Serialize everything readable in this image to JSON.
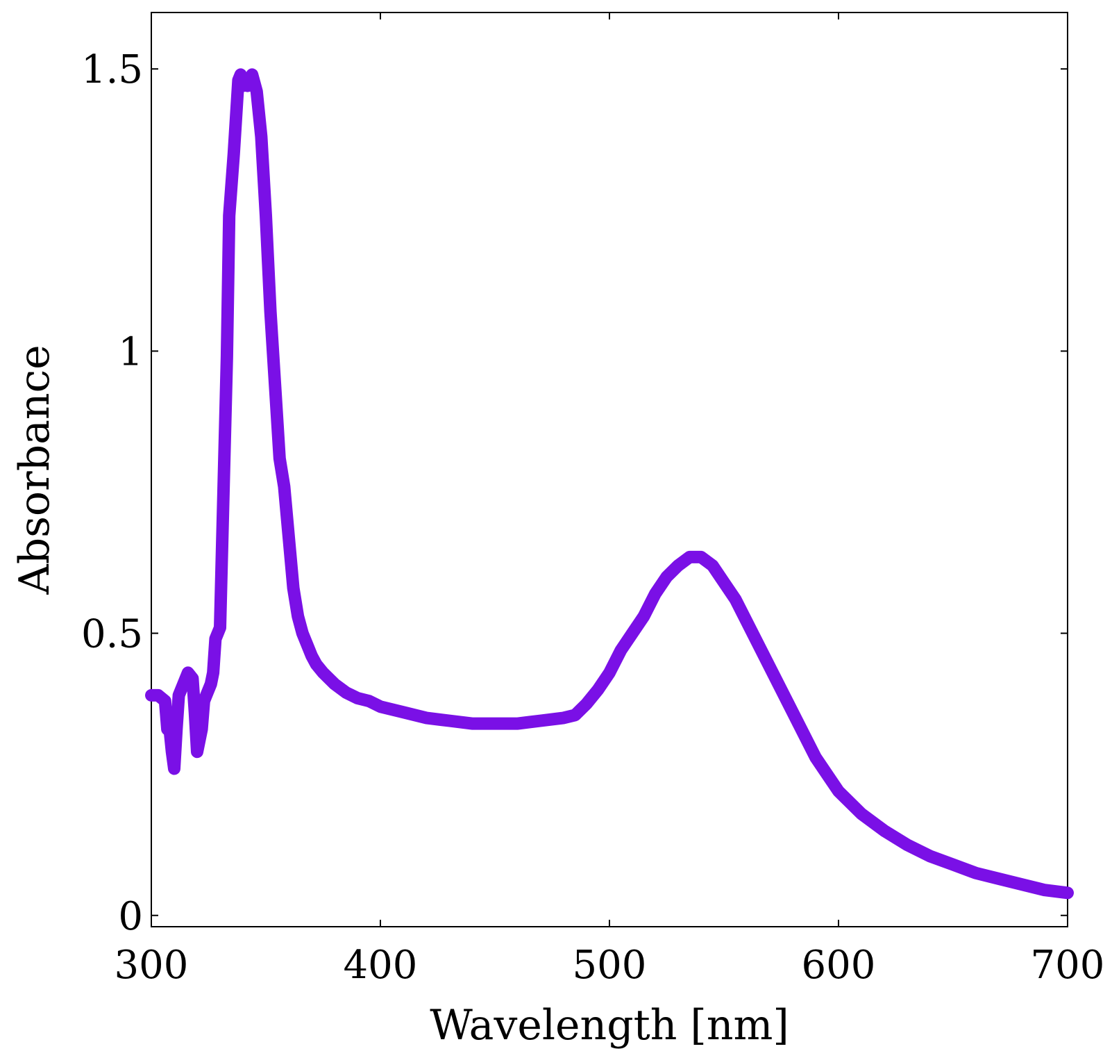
{
  "chart_data": {
    "type": "line",
    "title": "",
    "xlabel": "Wavelength [nm]",
    "ylabel": "Absorbance",
    "xlim": [
      300,
      700
    ],
    "ylim": [
      -0.02,
      1.6
    ],
    "grid": false,
    "x_ticks": [
      {
        "value": 300,
        "label": "300"
      },
      {
        "value": 400,
        "label": "400"
      },
      {
        "value": 500,
        "label": "500"
      },
      {
        "value": 600,
        "label": "600"
      },
      {
        "value": 700,
        "label": "700"
      }
    ],
    "y_ticks": [
      {
        "value": 0,
        "label": "0"
      },
      {
        "value": 0.5,
        "label": "0.5"
      },
      {
        "value": 1,
        "label": "1"
      },
      {
        "value": 1.5,
        "label": "1.5"
      }
    ],
    "series": [
      {
        "name": "Absorbance",
        "color": "#7a10e6",
        "x": [
          300,
          303,
          306,
          307,
          308,
          309,
          310,
          311,
          312,
          314,
          316,
          318,
          319,
          320,
          322,
          323,
          324,
          326,
          327,
          328,
          330,
          332,
          333,
          334,
          336,
          338,
          339,
          340,
          341,
          342,
          343,
          344,
          346,
          348,
          350,
          352,
          354,
          356,
          358,
          360,
          362,
          364,
          366,
          368,
          370,
          372,
          375,
          380,
          385,
          390,
          395,
          400,
          410,
          420,
          430,
          440,
          450,
          460,
          470,
          480,
          485,
          490,
          495,
          500,
          505,
          510,
          515,
          520,
          525,
          530,
          535,
          540,
          545,
          550,
          555,
          560,
          565,
          570,
          575,
          580,
          585,
          590,
          595,
          600,
          610,
          620,
          630,
          640,
          650,
          660,
          670,
          680,
          690,
          700
        ],
        "y": [
          0.39,
          0.39,
          0.38,
          0.33,
          0.33,
          0.29,
          0.26,
          0.33,
          0.39,
          0.41,
          0.43,
          0.42,
          0.36,
          0.29,
          0.33,
          0.38,
          0.39,
          0.41,
          0.43,
          0.49,
          0.51,
          0.83,
          0.99,
          1.24,
          1.35,
          1.48,
          1.49,
          1.47,
          1.48,
          1.47,
          1.48,
          1.49,
          1.46,
          1.38,
          1.24,
          1.07,
          0.94,
          0.81,
          0.76,
          0.67,
          0.58,
          0.53,
          0.5,
          0.48,
          0.46,
          0.445,
          0.43,
          0.41,
          0.395,
          0.385,
          0.38,
          0.37,
          0.36,
          0.35,
          0.345,
          0.34,
          0.34,
          0.34,
          0.345,
          0.35,
          0.355,
          0.375,
          0.4,
          0.43,
          0.47,
          0.5,
          0.53,
          0.57,
          0.6,
          0.62,
          0.635,
          0.635,
          0.62,
          0.59,
          0.56,
          0.52,
          0.48,
          0.44,
          0.4,
          0.36,
          0.32,
          0.28,
          0.25,
          0.22,
          0.18,
          0.15,
          0.125,
          0.105,
          0.09,
          0.075,
          0.065,
          0.055,
          0.045,
          0.04
        ]
      }
    ]
  }
}
